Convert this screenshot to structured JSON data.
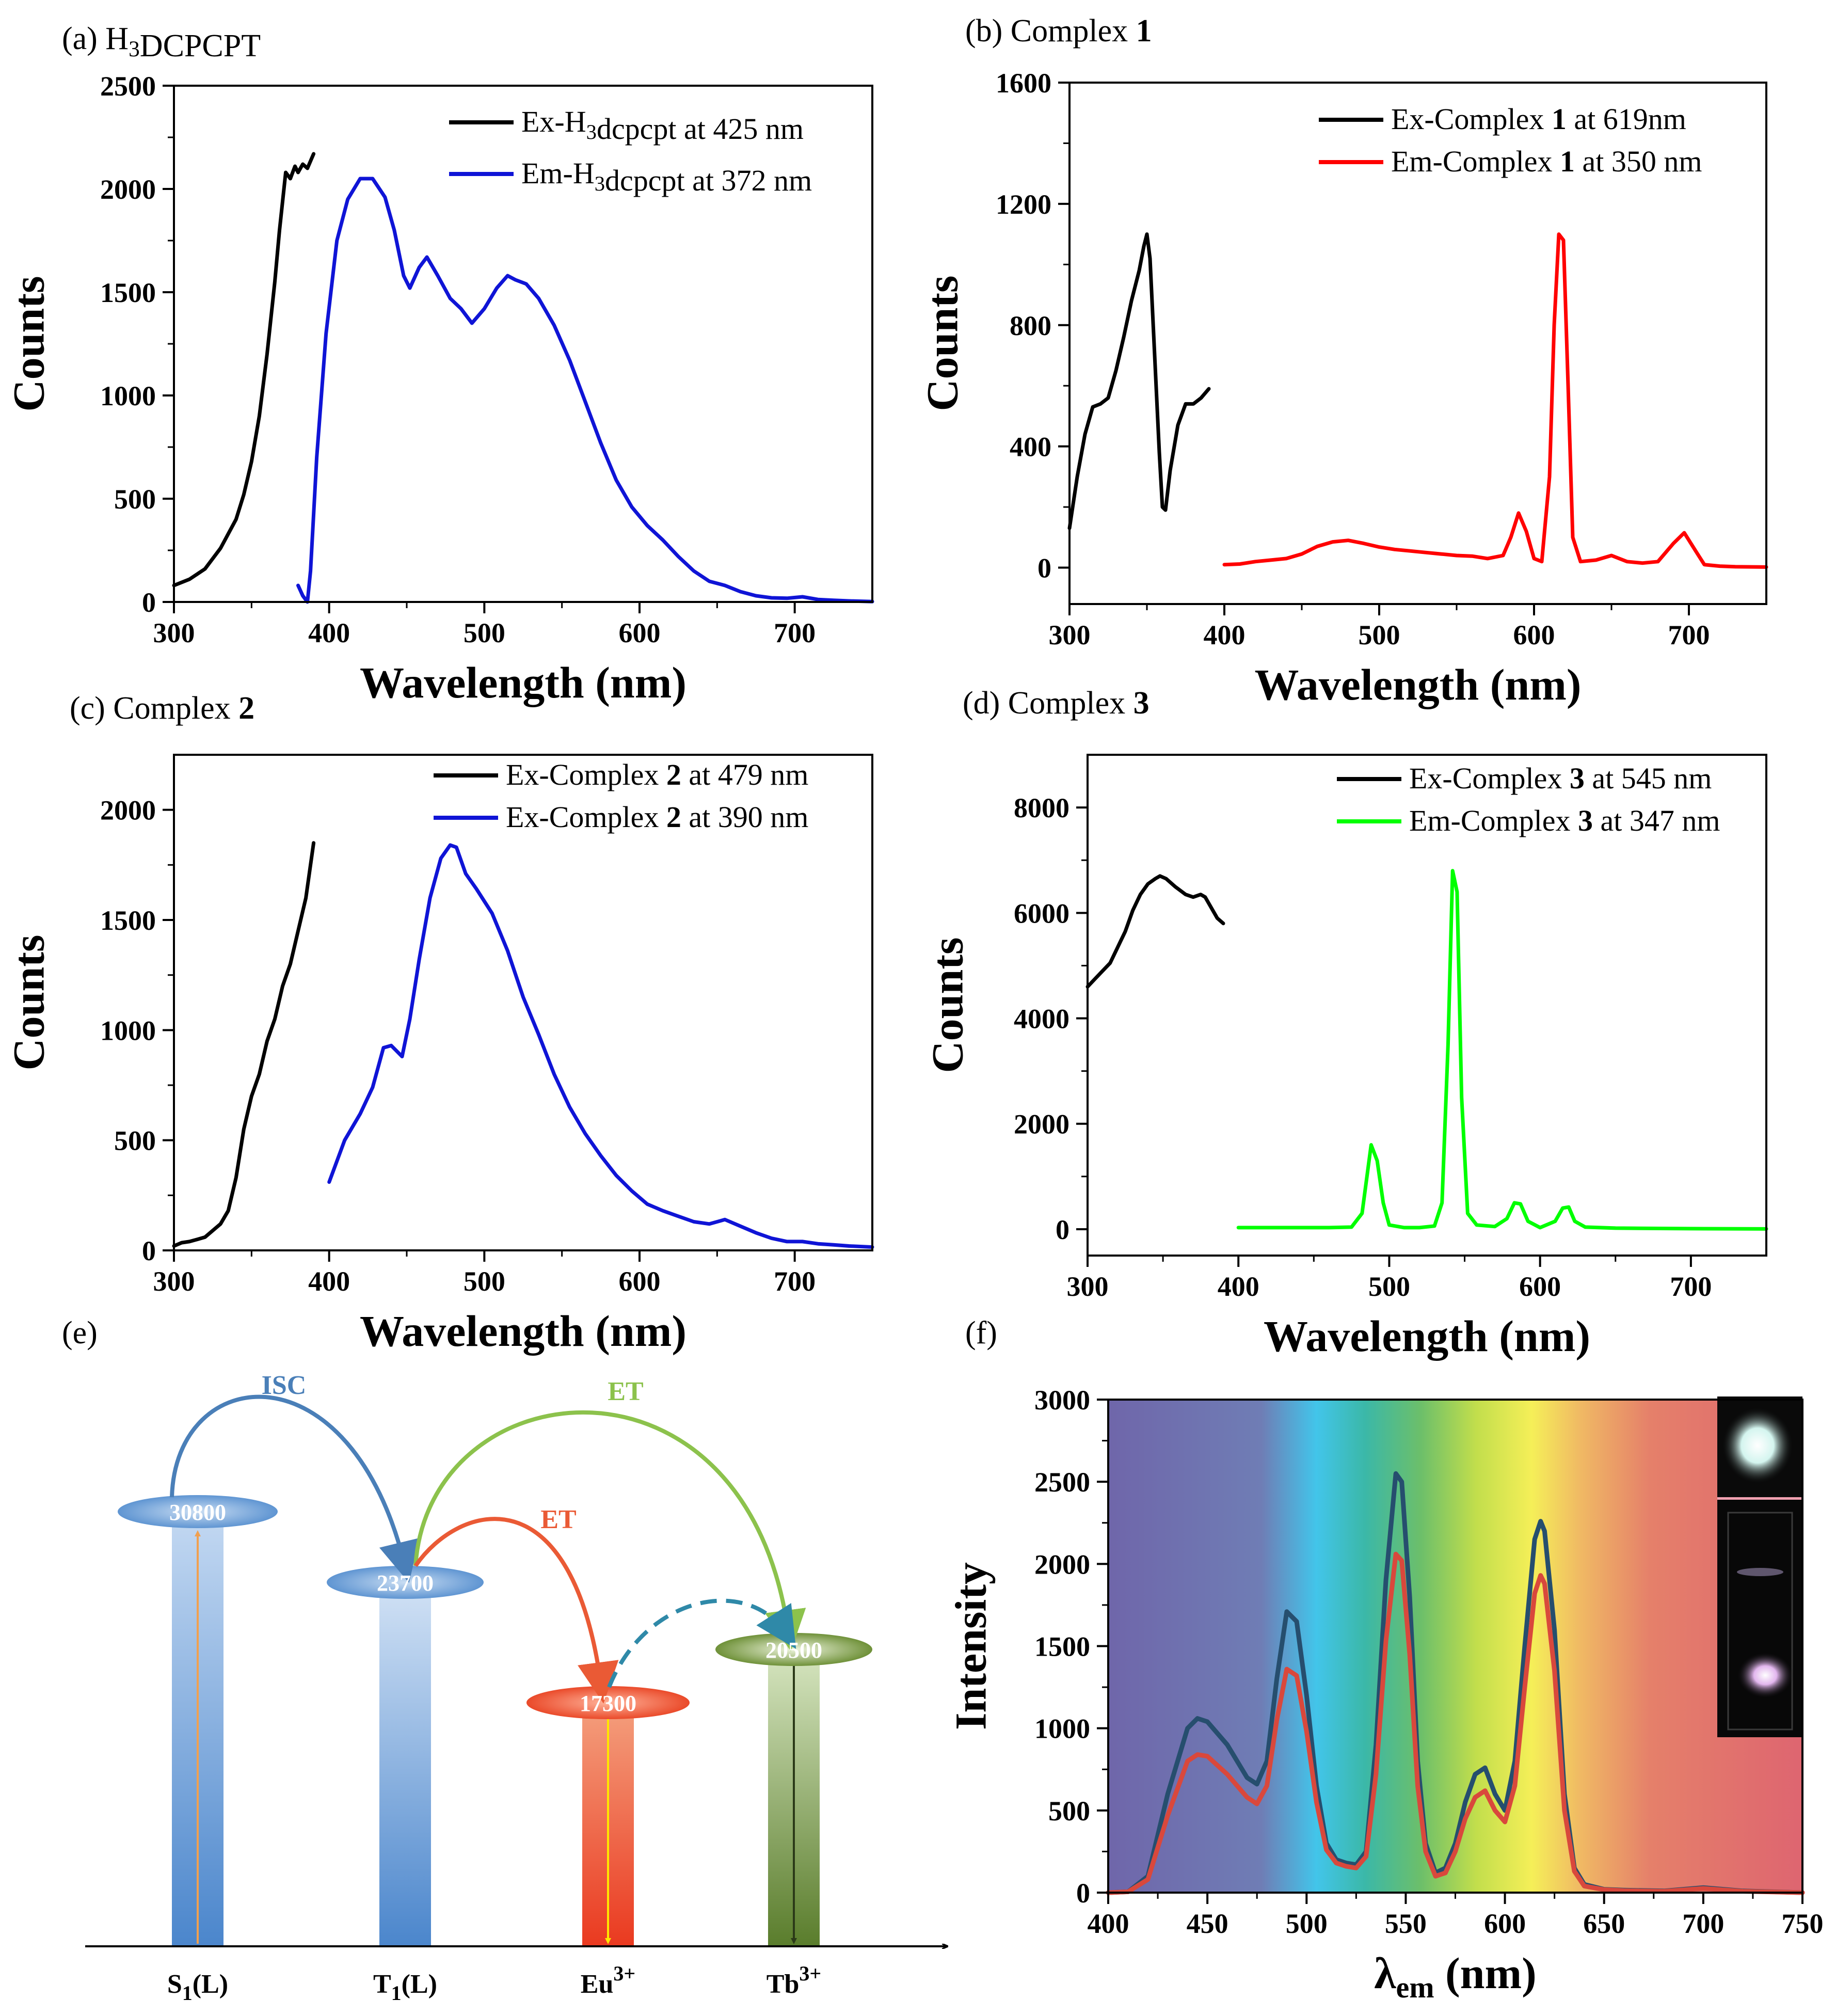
{
  "chart_data": [
    {
      "id": "a",
      "type": "line",
      "title": "(a) H3DCPCPT",
      "title_parts": [
        {
          "t": "(a) H",
          "sub": false
        },
        {
          "t": "3",
          "sub": true
        },
        {
          "t": "DCPCPT",
          "sub": false
        }
      ],
      "xlabel": "Wavelength (nm)",
      "ylabel": "Counts",
      "xlim": [
        300,
        750
      ],
      "ylim": [
        0,
        2500
      ],
      "xticks": [
        300,
        400,
        500,
        600,
        700
      ],
      "yticks": [
        0,
        500,
        1000,
        1500,
        2000,
        2500
      ],
      "series": [
        {
          "name": "Ex-H3dcpcpt at 425 nm",
          "label_parts": [
            {
              "t": "Ex-H",
              "sub": false
            },
            {
              "t": "3",
              "sub": true
            },
            {
              "t": "dcpcpt at 425 nm",
              "sub": false
            }
          ],
          "color": "#000000",
          "x": [
            300,
            310,
            320,
            330,
            340,
            345,
            350,
            355,
            360,
            365,
            368,
            372,
            375,
            378,
            380,
            383,
            386,
            390
          ],
          "y": [
            80,
            110,
            160,
            260,
            400,
            520,
            680,
            900,
            1200,
            1550,
            1800,
            2080,
            2050,
            2110,
            2080,
            2120,
            2100,
            2170
          ]
        },
        {
          "name": "Em-H3dcpcpt at 372 nm",
          "label_parts": [
            {
              "t": "Em-H",
              "sub": false
            },
            {
              "t": "3",
              "sub": true
            },
            {
              "t": "dcpcpt at 372 nm",
              "sub": false
            }
          ],
          "color": "#0f14d6",
          "x": [
            380,
            383,
            386,
            388,
            392,
            398,
            405,
            412,
            420,
            428,
            436,
            442,
            448,
            452,
            458,
            463,
            470,
            478,
            485,
            492,
            500,
            508,
            515,
            520,
            527,
            535,
            545,
            555,
            565,
            575,
            585,
            595,
            605,
            615,
            625,
            635,
            645,
            655,
            665,
            675,
            685,
            695,
            705,
            715,
            725,
            735,
            750
          ],
          "y": [
            80,
            30,
            0,
            150,
            700,
            1300,
            1750,
            1950,
            2050,
            2050,
            1960,
            1800,
            1580,
            1520,
            1620,
            1670,
            1580,
            1470,
            1420,
            1350,
            1420,
            1520,
            1580,
            1560,
            1540,
            1470,
            1340,
            1170,
            970,
            770,
            590,
            460,
            370,
            300,
            220,
            150,
            100,
            80,
            50,
            30,
            20,
            18,
            25,
            12,
            8,
            5,
            2
          ]
        }
      ]
    },
    {
      "id": "b",
      "type": "line",
      "title": "(b) Complex 1",
      "title_parts": [
        {
          "t": "(b) Complex ",
          "bold": false
        },
        {
          "t": "1",
          "bold": true
        }
      ],
      "xlabel": "Wavelength (nm)",
      "ylabel": "Counts",
      "xlim": [
        300,
        750
      ],
      "ylim": [
        -120,
        1600
      ],
      "xticks": [
        300,
        400,
        500,
        600,
        700
      ],
      "yticks": [
        0,
        400,
        800,
        1200,
        1600
      ],
      "series": [
        {
          "name": "Ex-Complex 1 at 619nm",
          "label_parts": [
            {
              "t": "Ex-Complex ",
              "bold": false
            },
            {
              "t": "1",
              "bold": true
            },
            {
              "t": " at 619nm",
              "bold": false
            }
          ],
          "color": "#000000",
          "x": [
            300,
            305,
            310,
            315,
            320,
            325,
            330,
            335,
            340,
            345,
            348,
            350,
            352,
            355,
            358,
            360,
            362,
            365,
            370,
            375,
            380,
            385,
            390
          ],
          "y": [
            130,
            300,
            440,
            530,
            540,
            560,
            650,
            760,
            880,
            980,
            1060,
            1100,
            1020,
            700,
            380,
            200,
            190,
            320,
            470,
            540,
            540,
            560,
            590
          ]
        },
        {
          "name": "Em-Complex 1 at 350 nm",
          "label_parts": [
            {
              "t": "Em-Complex ",
              "bold": false
            },
            {
              "t": "1",
              "bold": true
            },
            {
              "t": " at 350 nm",
              "bold": false
            }
          ],
          "color": "#ff0000",
          "x": [
            400,
            410,
            420,
            430,
            440,
            450,
            460,
            470,
            480,
            490,
            500,
            510,
            520,
            530,
            540,
            550,
            560,
            570,
            580,
            585,
            590,
            595,
            600,
            605,
            610,
            613,
            616,
            619,
            622,
            625,
            630,
            640,
            650,
            660,
            670,
            680,
            690,
            697,
            705,
            710,
            720,
            730,
            750
          ],
          "y": [
            10,
            12,
            20,
            25,
            30,
            45,
            70,
            85,
            90,
            80,
            68,
            60,
            55,
            50,
            45,
            40,
            38,
            30,
            40,
            100,
            180,
            120,
            30,
            20,
            300,
            800,
            1100,
            1080,
            600,
            100,
            20,
            25,
            40,
            20,
            15,
            20,
            80,
            115,
            50,
            10,
            5,
            3,
            2
          ]
        }
      ]
    },
    {
      "id": "c",
      "type": "line",
      "title": "(c) Complex 2",
      "title_parts": [
        {
          "t": "(c) Complex ",
          "bold": false
        },
        {
          "t": "2",
          "bold": true
        }
      ],
      "xlabel": "Wavelength (nm)",
      "ylabel": "Counts",
      "xlim": [
        300,
        750
      ],
      "ylim": [
        0,
        2250
      ],
      "xticks": [
        300,
        400,
        500,
        600,
        700
      ],
      "yticks": [
        0,
        500,
        1000,
        1500,
        2000
      ],
      "series": [
        {
          "name": "Ex-Complex 2 at 479 nm",
          "label_parts": [
            {
              "t": "Ex-Complex ",
              "bold": false
            },
            {
              "t": "2",
              "bold": true
            },
            {
              "t": " at 479 nm",
              "bold": false
            }
          ],
          "color": "#000000",
          "x": [
            300,
            305,
            310,
            315,
            320,
            325,
            330,
            335,
            340,
            345,
            350,
            355,
            360,
            365,
            370,
            375,
            380,
            385,
            390
          ],
          "y": [
            20,
            35,
            40,
            50,
            60,
            90,
            120,
            180,
            330,
            550,
            700,
            800,
            950,
            1050,
            1200,
            1300,
            1450,
            1600,
            1850
          ]
        },
        {
          "name": "Ex-Complex 2 at 390 nm",
          "label_parts": [
            {
              "t": "Ex-Complex ",
              "bold": false
            },
            {
              "t": "2",
              "bold": true
            },
            {
              "t": " at 390 nm",
              "bold": false
            }
          ],
          "color": "#0f14d6",
          "x": [
            400,
            410,
            420,
            428,
            435,
            440,
            447,
            452,
            458,
            465,
            472,
            478,
            482,
            488,
            495,
            505,
            515,
            525,
            535,
            545,
            555,
            565,
            575,
            585,
            595,
            605,
            615,
            625,
            635,
            645,
            655,
            665,
            675,
            685,
            695,
            705,
            715,
            725,
            735,
            750
          ],
          "y": [
            310,
            500,
            620,
            740,
            920,
            930,
            880,
            1050,
            1320,
            1600,
            1780,
            1840,
            1830,
            1710,
            1640,
            1530,
            1360,
            1150,
            980,
            800,
            650,
            530,
            430,
            340,
            270,
            210,
            180,
            155,
            130,
            120,
            140,
            110,
            80,
            55,
            40,
            40,
            30,
            25,
            20,
            15
          ]
        }
      ]
    },
    {
      "id": "d",
      "type": "line",
      "title": "(d) Complex 3",
      "title_parts": [
        {
          "t": "(d) Complex ",
          "bold": false
        },
        {
          "t": "3",
          "bold": true
        }
      ],
      "xlabel": "Wavelength (nm)",
      "ylabel": "Counts",
      "xlim": [
        300,
        750
      ],
      "ylim": [
        -500,
        9000
      ],
      "xticks": [
        300,
        400,
        500,
        600,
        700
      ],
      "yticks": [
        0,
        2000,
        4000,
        6000,
        8000
      ],
      "series": [
        {
          "name": "Ex-Complex 3 at 545 nm",
          "label_parts": [
            {
              "t": "Ex-Complex ",
              "bold": false
            },
            {
              "t": "3",
              "bold": true
            },
            {
              "t": " at 545 nm",
              "bold": false
            }
          ],
          "color": "#000000",
          "x": [
            300,
            305,
            310,
            315,
            320,
            325,
            330,
            335,
            340,
            345,
            348,
            352,
            358,
            365,
            370,
            375,
            378,
            382,
            386,
            390
          ],
          "y": [
            4600,
            4750,
            4900,
            5050,
            5350,
            5650,
            6050,
            6350,
            6550,
            6650,
            6700,
            6650,
            6500,
            6350,
            6300,
            6350,
            6300,
            6100,
            5900,
            5800
          ]
        },
        {
          "name": "Em-Complex 3 at 347 nm",
          "label_parts": [
            {
              "t": "Em-Complex ",
              "bold": false
            },
            {
              "t": "3",
              "bold": true
            },
            {
              "t": " at 347 nm",
              "bold": false
            }
          ],
          "color": "#00ff00",
          "x": [
            400,
            420,
            440,
            460,
            475,
            482,
            488,
            492,
            496,
            500,
            510,
            520,
            530,
            535,
            539,
            542,
            545,
            548,
            552,
            558,
            570,
            578,
            583,
            587,
            592,
            600,
            610,
            615,
            619,
            623,
            630,
            650,
            700,
            750
          ],
          "y": [
            30,
            30,
            30,
            30,
            40,
            300,
            1600,
            1300,
            500,
            80,
            30,
            30,
            60,
            500,
            3500,
            6800,
            6400,
            2500,
            300,
            80,
            50,
            200,
            500,
            480,
            150,
            30,
            150,
            400,
            420,
            150,
            40,
            20,
            10,
            5
          ]
        }
      ]
    },
    {
      "id": "f",
      "type": "line",
      "title": "(f)",
      "xlabel": "λem (nm)",
      "ylabel": "Intensity",
      "xlim": [
        400,
        750
      ],
      "ylim": [
        0,
        3000
      ],
      "xticks": [
        400,
        450,
        500,
        550,
        600,
        650,
        700,
        750
      ],
      "yticks": [
        0,
        500,
        1000,
        1500,
        2000,
        2500,
        3000
      ],
      "series": [
        {
          "name": "upper curve",
          "color": "#264e6e",
          "x": [
            400,
            410,
            420,
            430,
            440,
            445,
            450,
            460,
            470,
            475,
            480,
            485,
            490,
            495,
            500,
            505,
            510,
            515,
            520,
            525,
            530,
            535,
            540,
            545,
            548,
            552,
            556,
            560,
            565,
            570,
            575,
            580,
            585,
            590,
            595,
            600,
            605,
            610,
            615,
            618,
            620,
            625,
            630,
            635,
            640,
            650,
            660,
            680,
            700,
            720,
            750
          ],
          "y": [
            0,
            5,
            100,
            600,
            1000,
            1060,
            1040,
            900,
            700,
            660,
            800,
            1300,
            1710,
            1650,
            1200,
            650,
            300,
            200,
            180,
            170,
            250,
            900,
            1900,
            2550,
            2500,
            1800,
            800,
            300,
            120,
            150,
            300,
            550,
            720,
            760,
            600,
            500,
            800,
            1500,
            2150,
            2260,
            2200,
            1600,
            600,
            150,
            50,
            20,
            15,
            10,
            30,
            10,
            0
          ]
        },
        {
          "name": "lower curve",
          "color": "#d9483c",
          "x": [
            400,
            410,
            420,
            430,
            440,
            445,
            450,
            460,
            470,
            475,
            480,
            485,
            490,
            495,
            500,
            505,
            510,
            515,
            520,
            525,
            530,
            535,
            540,
            545,
            548,
            552,
            556,
            560,
            565,
            570,
            575,
            580,
            585,
            590,
            595,
            600,
            605,
            610,
            615,
            618,
            620,
            625,
            630,
            635,
            640,
            650,
            660,
            680,
            700,
            720,
            750
          ],
          "y": [
            0,
            5,
            80,
            470,
            800,
            840,
            830,
            720,
            580,
            540,
            650,
            1050,
            1360,
            1320,
            980,
            550,
            260,
            180,
            160,
            150,
            220,
            720,
            1530,
            2060,
            2020,
            1450,
            650,
            250,
            100,
            120,
            250,
            450,
            580,
            620,
            500,
            430,
            650,
            1250,
            1820,
            1930,
            1880,
            1350,
            500,
            130,
            40,
            18,
            12,
            8,
            25,
            8,
            0
          ]
        }
      ]
    }
  ],
  "panel_e": {
    "title": "(e)",
    "levels": [
      {
        "value": "30800",
        "label": "S",
        "sub": "1",
        "tail": "(L)"
      },
      {
        "value": "23700",
        "label": "T",
        "sub": "1",
        "tail": "(L)"
      },
      {
        "value": "17300",
        "label": "Eu",
        "sup": "3+"
      },
      {
        "value": "20500",
        "label": "Tb",
        "sup": "3+"
      }
    ],
    "arrows": [
      "ISC",
      "ET",
      "ET"
    ],
    "colors": {
      "isc": "#4a7fb8",
      "et_eu": "#ea5a35",
      "et_tb": "#8cc24c",
      "back": "#2f89a8"
    }
  },
  "inset_f": {
    "top_photo": "white-luminescent-sample-icon",
    "bottom_photo": "cuvette-photo-icon"
  }
}
